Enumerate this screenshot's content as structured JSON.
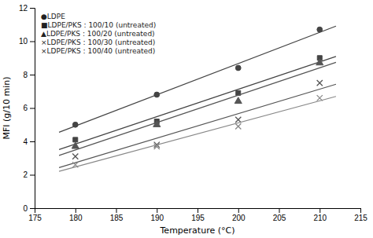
{
  "chart_data": {
    "type": "scatter",
    "xlabel": "Temperature (°C)",
    "ylabel": "MFI (g/10 min)",
    "xlim": [
      175,
      215
    ],
    "ylim": [
      0,
      12
    ],
    "xticks": [
      175,
      180,
      185,
      190,
      195,
      200,
      205,
      210,
      215
    ],
    "yticks": [
      0,
      2,
      4,
      6,
      8,
      10,
      12
    ],
    "grid": false,
    "legend": "upper left",
    "series": [
      {
        "name": "●LDPE",
        "marker": "circle",
        "color": "#444444",
        "x": [
          180,
          190,
          200,
          210
        ],
        "values": [
          5.0,
          6.8,
          8.4,
          10.7
        ],
        "trend_x": [
          178,
          212
        ],
        "trend_y": [
          4.546,
          10.904
        ]
      },
      {
        "name": "■LDPE/PKS : 100/10 (untreated)",
        "marker": "square",
        "color": "#444444",
        "x": [
          180,
          190,
          200,
          210
        ],
        "values": [
          4.1,
          5.2,
          6.9,
          9.0
        ],
        "trend_x": [
          178,
          212
        ],
        "trend_y": [
          3.512,
          9.088
        ]
      },
      {
        "name": "▲LDPE/PKS : 100/20 (untreated)",
        "marker": "triangle",
        "color": "#555555",
        "x": [
          180,
          190,
          200,
          210
        ],
        "values": [
          3.7,
          5.0,
          6.4,
          8.7
        ],
        "trend_x": [
          178,
          212
        ],
        "trend_y": [
          3.162,
          8.738
        ]
      },
      {
        "name": "×LDPE/PKS : 100/30 (untreated)",
        "marker": "x",
        "color": "#555555",
        "x": [
          180,
          190,
          200,
          210
        ],
        "values": [
          3.1,
          3.8,
          5.3,
          7.5
        ],
        "trend_x": [
          178,
          212
        ],
        "trend_y": [
          2.426,
          7.424
        ]
      },
      {
        "name": "×LDPE/PKS : 100/40 (untreated)",
        "marker": "x",
        "color": "#888888",
        "x": [
          180,
          190,
          200,
          210
        ],
        "values": [
          2.6,
          3.7,
          4.9,
          6.6
        ],
        "trend_x": [
          178,
          212
        ],
        "trend_y": [
          2.206,
          6.694
        ]
      }
    ]
  }
}
